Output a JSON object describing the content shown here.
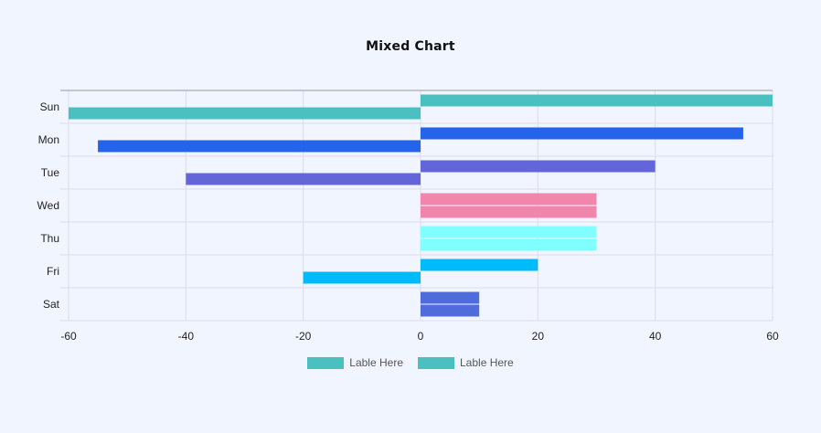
{
  "chart_data": {
    "type": "bar",
    "orientation": "horizontal",
    "title": "Mixed  Chart",
    "categories": [
      "Sun",
      "Mon",
      "Tue",
      "Wed",
      "Thu",
      "Fri",
      "Sat"
    ],
    "series": [
      {
        "name": "Lable Here",
        "values": [
          60,
          55,
          40,
          30,
          30,
          20,
          10
        ],
        "colors": [
          "#4bc0c0",
          "#2563eb",
          "#6366d9",
          "#f285ac",
          "#7fffff",
          "#00bbf9",
          "#4f6bdc"
        ]
      },
      {
        "name": "Lable Here",
        "values": [
          -60,
          -55,
          -40,
          30,
          30,
          -20,
          10
        ],
        "colors": [
          "#4bc0c0",
          "#2563eb",
          "#6366d9",
          "#f285ac",
          "#7fffff",
          "#00bbf9",
          "#4f6bdc"
        ]
      }
    ],
    "xlim": [
      -60,
      60
    ],
    "xticks": [
      -60,
      -40,
      -20,
      0,
      20,
      40,
      60
    ],
    "grid": true,
    "legend_position": "bottom-center",
    "legend_colors": [
      "#4bc0c0",
      "#4bc0c0"
    ]
  }
}
